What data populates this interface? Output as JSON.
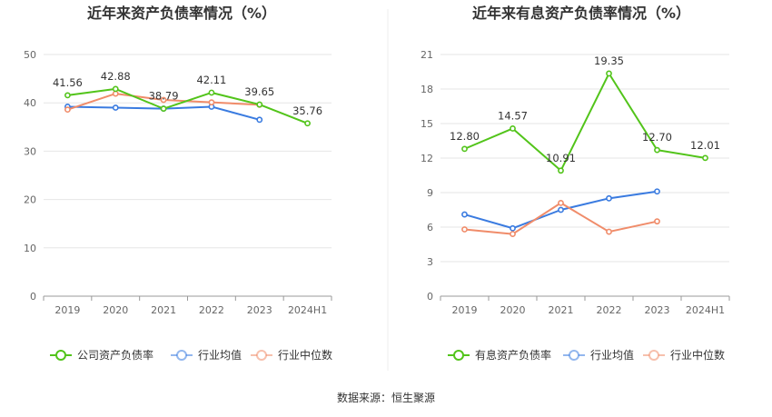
{
  "source_label": "数据来源：恒生聚源",
  "chart_data": [
    {
      "type": "line",
      "title": "近年来资产负债率情况（%）",
      "categories": [
        "2019",
        "2020",
        "2021",
        "2022",
        "2023",
        "2024H1"
      ],
      "ylim": [
        0,
        50
      ],
      "yticks": [
        0,
        10,
        20,
        30,
        40,
        50
      ],
      "grid": true,
      "legend_position": "bottom",
      "series": [
        {
          "name": "公司资产负债率",
          "color": "#52c41a",
          "labeled": true,
          "values": [
            41.56,
            42.88,
            38.79,
            42.11,
            39.65,
            35.76
          ]
        },
        {
          "name": "行业均值",
          "color": "#3a7be0",
          "labeled": false,
          "values": [
            39.2,
            39.0,
            38.8,
            39.2,
            36.5,
            null
          ]
        },
        {
          "name": "行业中位数",
          "color": "#f08c6a",
          "labeled": false,
          "values": [
            38.6,
            41.9,
            40.6,
            40.1,
            39.6,
            null
          ]
        }
      ]
    },
    {
      "type": "line",
      "title": "近年来有息资产负债率情况（%）",
      "categories": [
        "2019",
        "2020",
        "2021",
        "2022",
        "2023",
        "2024H1"
      ],
      "ylim": [
        0,
        21
      ],
      "yticks": [
        0,
        3,
        6,
        9,
        12,
        15,
        18,
        21
      ],
      "grid": true,
      "legend_position": "bottom",
      "series": [
        {
          "name": "有息资产负债率",
          "color": "#52c41a",
          "labeled": true,
          "values": [
            12.8,
            14.57,
            10.91,
            19.35,
            12.7,
            12.01
          ]
        },
        {
          "name": "行业均值",
          "color": "#3a7be0",
          "labeled": false,
          "values": [
            7.1,
            5.9,
            7.5,
            8.5,
            9.1,
            null
          ]
        },
        {
          "name": "行业中位数",
          "color": "#f08c6a",
          "labeled": false,
          "values": [
            5.8,
            5.4,
            8.1,
            5.6,
            6.5,
            null
          ]
        }
      ]
    }
  ]
}
